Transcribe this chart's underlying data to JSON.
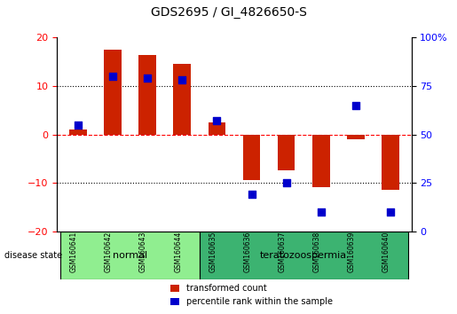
{
  "title": "GDS2695 / GI_4826650-S",
  "samples": [
    "GSM160641",
    "GSM160642",
    "GSM160643",
    "GSM160644",
    "GSM160635",
    "GSM160636",
    "GSM160637",
    "GSM160638",
    "GSM160639",
    "GSM160640"
  ],
  "transformed_count": [
    1.0,
    17.5,
    16.5,
    14.5,
    2.5,
    -9.5,
    -7.5,
    -11.0,
    -1.0,
    -11.5
  ],
  "percentile_rank": [
    55,
    80,
    79,
    78,
    57,
    19,
    25,
    10,
    65,
    10
  ],
  "disease_groups": [
    {
      "label": "normal",
      "start": 0,
      "end": 4,
      "color": "#90ee90"
    },
    {
      "label": "teratozoospermia",
      "start": 4,
      "end": 10,
      "color": "#3cb371"
    }
  ],
  "bar_color": "#cc2200",
  "dot_color": "#0000cc",
  "ylim_left": [
    -20,
    20
  ],
  "ylim_right": [
    0,
    100
  ],
  "yticks_left": [
    -20,
    -10,
    0,
    10,
    20
  ],
  "yticks_right": [
    0,
    25,
    50,
    75,
    100
  ],
  "ytick_labels_right": [
    "0",
    "25",
    "50",
    "75",
    "100%"
  ],
  "hlines": [
    0,
    10,
    -10
  ],
  "background_color": "#ffffff",
  "plot_bg_color": "#ffffff",
  "grid_color": "#000000",
  "bar_width": 0.5,
  "legend_red_label": "transformed count",
  "legend_blue_label": "percentile rank within the sample",
  "disease_state_label": "disease state"
}
